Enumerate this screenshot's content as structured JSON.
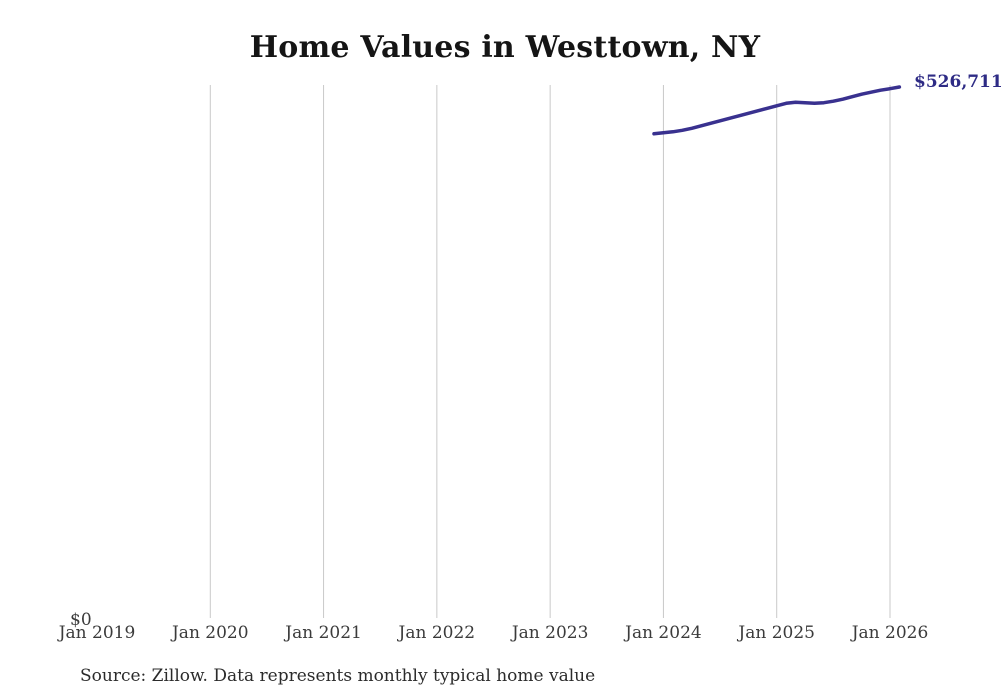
{
  "chart": {
    "source_note": "Source: Zillow. Data represents monthly typical home value",
    "style": {
      "line_color": "#39318f",
      "annotation_color": "#2e2b85",
      "gridline_color": "#c9c9c9",
      "tick_text_color": "#3b3b3b",
      "title_color": "#151515",
      "background_color": "#ffffff"
    }
  },
  "chart_data": {
    "type": "line",
    "title": "Home Values in Westtown, NY",
    "xlabel": "",
    "ylabel": "",
    "grid": "vertical-only",
    "legend": "none",
    "y_axis": {
      "min": 0,
      "baseline_label": "$0"
    },
    "x_ticks": [
      {
        "label": "Jan 2019",
        "month": "2019-01",
        "gridline": false
      },
      {
        "label": "Jan 2020",
        "month": "2020-01",
        "gridline": true
      },
      {
        "label": "Jan 2021",
        "month": "2021-01",
        "gridline": true
      },
      {
        "label": "Jan 2022",
        "month": "2022-01",
        "gridline": true
      },
      {
        "label": "Jan 2023",
        "month": "2023-01",
        "gridline": true
      },
      {
        "label": "Jan 2024",
        "month": "2024-01",
        "gridline": true
      },
      {
        "label": "Jan 2025",
        "month": "2025-01",
        "gridline": true
      },
      {
        "label": "Jan 2026",
        "month": "2026-01",
        "gridline": true
      }
    ],
    "end_annotation": "$526,711",
    "series": [
      {
        "name": "Monthly typical home value",
        "x": [
          "2023-12",
          "2024-01",
          "2024-02",
          "2024-03",
          "2024-04",
          "2024-05",
          "2024-06",
          "2024-07",
          "2024-08",
          "2024-09",
          "2024-10",
          "2024-11",
          "2024-12",
          "2025-01",
          "2025-02",
          "2025-03",
          "2025-04",
          "2025-05",
          "2025-06",
          "2025-07",
          "2025-08",
          "2025-09",
          "2025-10",
          "2025-11",
          "2025-12",
          "2026-01",
          "2026-02"
        ],
        "values": [
          480000,
          481000,
          482000,
          483500,
          485500,
          488000,
          490500,
          493000,
          495500,
          498000,
          500500,
          503000,
          505500,
          508000,
          510500,
          511500,
          511000,
          510500,
          511000,
          512500,
          514500,
          517000,
          519500,
          521500,
          523500,
          525000,
          526711
        ]
      }
    ]
  }
}
